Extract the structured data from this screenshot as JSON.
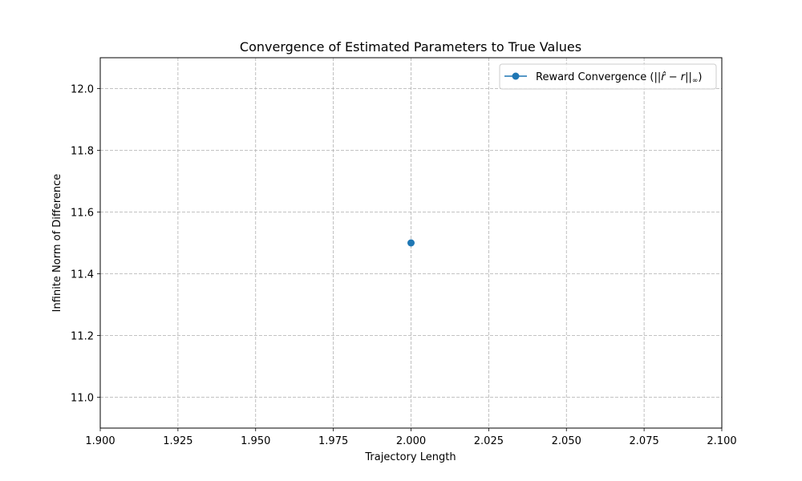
{
  "colors": {
    "series": "#1f77b4",
    "grid": "#b0b0b0",
    "axis": "#000000",
    "background": "#ffffff"
  },
  "chart_data": {
    "type": "line",
    "title": "Convergence of Estimated Parameters to True Values",
    "xlabel": "Trajectory Length",
    "ylabel": "Infinite Norm of Difference",
    "xlim": [
      1.9,
      2.1
    ],
    "ylim": [
      10.9,
      12.1
    ],
    "xticks": [
      "1.900",
      "1.925",
      "1.950",
      "1.975",
      "2.000",
      "2.025",
      "2.050",
      "2.075",
      "2.100"
    ],
    "xtick_values": [
      1.9,
      1.925,
      1.95,
      1.975,
      2.0,
      2.025,
      2.05,
      2.075,
      2.1
    ],
    "yticks": [
      "11.0",
      "11.2",
      "11.4",
      "11.6",
      "11.8",
      "12.0"
    ],
    "ytick_values": [
      11.0,
      11.2,
      11.4,
      11.6,
      11.8,
      12.0
    ],
    "grid": true,
    "legend_position": "top-right",
    "series": [
      {
        "name": "Reward Convergence (||r̂ − r||∞)",
        "legend_prefix": "Reward Convergence (||",
        "legend_math": "r̂ − r",
        "legend_suffix": "||",
        "legend_sub": "∞",
        "legend_close": ")",
        "marker": "circle",
        "x": [
          2.0
        ],
        "y": [
          11.5
        ]
      }
    ]
  }
}
